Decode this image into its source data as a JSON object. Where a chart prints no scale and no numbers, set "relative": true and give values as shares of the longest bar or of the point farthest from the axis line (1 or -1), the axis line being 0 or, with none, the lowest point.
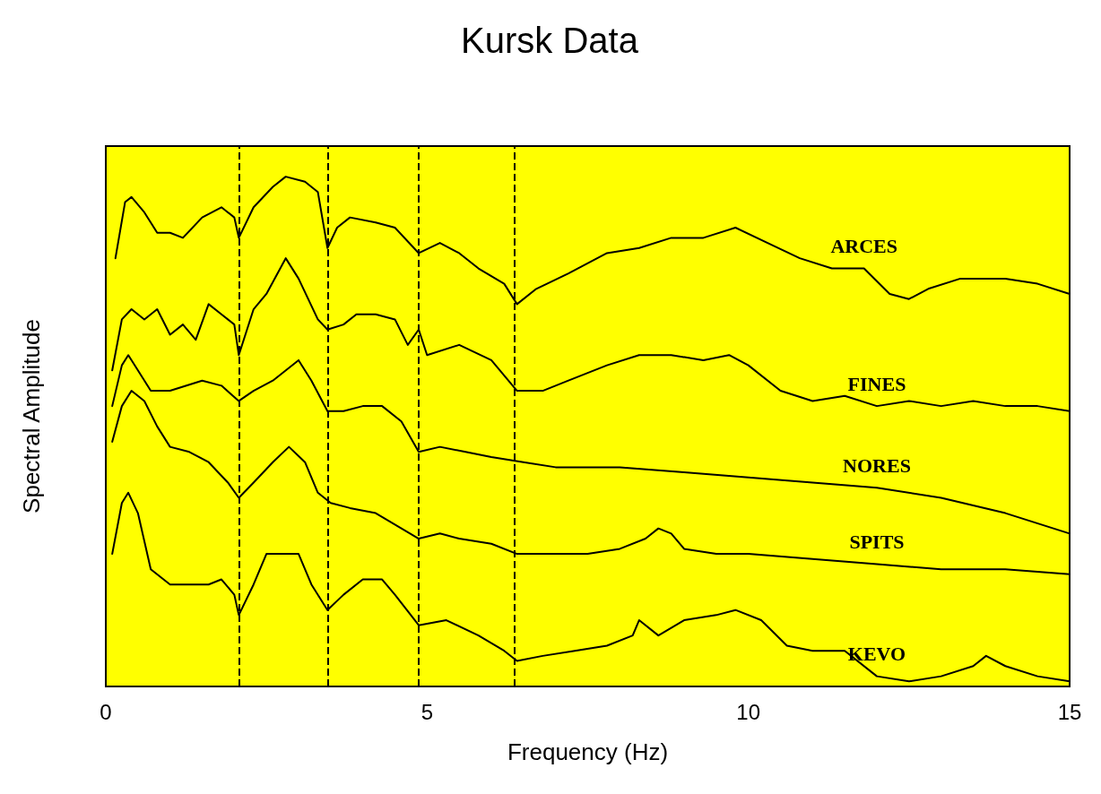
{
  "chart_data": {
    "type": "line",
    "title": "Kursk Data",
    "xlabel": "Frequency (Hz)",
    "ylabel": "Spectral Amplitude",
    "relative": true,
    "xlim": [
      0,
      15
    ],
    "xticks": [
      0,
      5,
      10,
      15
    ],
    "grid": false,
    "legend": false,
    "marker": "none",
    "line_style": "solid",
    "ref_lines": [
      {
        "axis": "x",
        "value": 2.07,
        "color": "#000000",
        "line_style": "dashed"
      },
      {
        "axis": "x",
        "value": 3.45,
        "color": "#000000",
        "line_style": "dashed"
      },
      {
        "axis": "x",
        "value": 4.87,
        "color": "#000000",
        "line_style": "dashed"
      },
      {
        "axis": "x",
        "value": 6.36,
        "color": "#000000",
        "line_style": "dashed"
      }
    ],
    "series": [
      {
        "name": "ARCES",
        "color": "#000000",
        "x": [
          0.15,
          0.3,
          0.4,
          0.6,
          0.8,
          1.0,
          1.2,
          1.5,
          1.8,
          2.0,
          2.07,
          2.3,
          2.6,
          2.8,
          3.1,
          3.3,
          3.45,
          3.6,
          3.8,
          4.2,
          4.5,
          4.87,
          5.2,
          5.5,
          5.8,
          6.2,
          6.4,
          6.7,
          7.2,
          7.8,
          8.3,
          8.8,
          9.3,
          9.8,
          10.3,
          10.8,
          11.3,
          11.8,
          12.2,
          12.5,
          12.8,
          13.3,
          14,
          14.5,
          15
        ],
        "values": [
          0.84,
          0.95,
          0.96,
          0.93,
          0.89,
          0.89,
          0.88,
          0.92,
          0.94,
          0.92,
          0.88,
          0.94,
          0.98,
          1.0,
          0.99,
          0.97,
          0.86,
          0.9,
          0.92,
          0.91,
          0.9,
          0.85,
          0.87,
          0.85,
          0.82,
          0.79,
          0.75,
          0.78,
          0.81,
          0.85,
          0.86,
          0.88,
          0.88,
          0.9,
          0.87,
          0.84,
          0.82,
          0.82,
          0.77,
          0.76,
          0.78,
          0.8,
          0.8,
          0.79,
          0.77
        ]
      },
      {
        "name": "FINES",
        "color": "#000000",
        "x": [
          0.1,
          0.25,
          0.4,
          0.6,
          0.8,
          1.0,
          1.2,
          1.4,
          1.6,
          1.8,
          2.0,
          2.07,
          2.3,
          2.5,
          2.8,
          3.0,
          3.3,
          3.45,
          3.7,
          3.9,
          4.2,
          4.5,
          4.7,
          4.87,
          5.0,
          5.5,
          6.0,
          6.4,
          6.8,
          7.2,
          7.8,
          8.3,
          8.8,
          9.3,
          9.7,
          10.0,
          10.5,
          11,
          11.5,
          12,
          12.5,
          13,
          13.5,
          14,
          14.5,
          15
        ],
        "values": [
          0.62,
          0.72,
          0.74,
          0.72,
          0.74,
          0.69,
          0.71,
          0.68,
          0.75,
          0.73,
          0.71,
          0.65,
          0.74,
          0.77,
          0.84,
          0.8,
          0.72,
          0.7,
          0.71,
          0.73,
          0.73,
          0.72,
          0.67,
          0.7,
          0.65,
          0.67,
          0.64,
          0.58,
          0.58,
          0.6,
          0.63,
          0.65,
          0.65,
          0.64,
          0.65,
          0.63,
          0.58,
          0.56,
          0.57,
          0.55,
          0.56,
          0.55,
          0.56,
          0.55,
          0.55,
          0.54
        ]
      },
      {
        "name": "NORES",
        "color": "#000000",
        "x": [
          0.1,
          0.25,
          0.35,
          0.5,
          0.7,
          1.0,
          1.5,
          1.8,
          2.07,
          2.3,
          2.6,
          3.0,
          3.2,
          3.45,
          3.7,
          4.0,
          4.3,
          4.6,
          4.87,
          5.2,
          5.6,
          6.0,
          6.5,
          7.0,
          8.0,
          9.0,
          10,
          11,
          12,
          13,
          14,
          15
        ],
        "values": [
          0.55,
          0.63,
          0.65,
          0.62,
          0.58,
          0.58,
          0.6,
          0.59,
          0.56,
          0.58,
          0.6,
          0.64,
          0.6,
          0.54,
          0.54,
          0.55,
          0.55,
          0.52,
          0.46,
          0.47,
          0.46,
          0.45,
          0.44,
          0.43,
          0.43,
          0.42,
          0.41,
          0.4,
          0.39,
          0.37,
          0.34,
          0.3
        ]
      },
      {
        "name": "SPITS",
        "color": "#000000",
        "x": [
          0.1,
          0.25,
          0.4,
          0.6,
          0.8,
          1.0,
          1.3,
          1.6,
          1.9,
          2.07,
          2.3,
          2.6,
          2.85,
          3.1,
          3.3,
          3.5,
          3.8,
          4.2,
          4.6,
          4.87,
          5.2,
          5.5,
          6.0,
          6.4,
          7.0,
          7.5,
          8.0,
          8.4,
          8.6,
          8.8,
          9.0,
          9.5,
          10,
          11,
          12,
          13,
          14,
          15
        ],
        "values": [
          0.48,
          0.55,
          0.58,
          0.56,
          0.51,
          0.47,
          0.46,
          0.44,
          0.4,
          0.37,
          0.4,
          0.44,
          0.47,
          0.44,
          0.38,
          0.36,
          0.35,
          0.34,
          0.31,
          0.29,
          0.3,
          0.29,
          0.28,
          0.26,
          0.26,
          0.26,
          0.27,
          0.29,
          0.31,
          0.3,
          0.27,
          0.26,
          0.26,
          0.25,
          0.24,
          0.23,
          0.23,
          0.22
        ]
      },
      {
        "name": "KEVO",
        "color": "#000000",
        "x": [
          0.1,
          0.25,
          0.35,
          0.5,
          0.7,
          1.0,
          1.3,
          1.6,
          1.8,
          2.0,
          2.07,
          2.3,
          2.5,
          2.8,
          3.0,
          3.2,
          3.45,
          3.7,
          4.0,
          4.3,
          4.5,
          4.87,
          5.3,
          5.8,
          6.2,
          6.4,
          6.8,
          7.3,
          7.8,
          8.2,
          8.3,
          8.6,
          9.0,
          9.5,
          9.8,
          10.2,
          10.6,
          11,
          11.5,
          12,
          12.5,
          13,
          13.5,
          13.7,
          14,
          14.5,
          15
        ],
        "values": [
          0.26,
          0.36,
          0.38,
          0.34,
          0.23,
          0.2,
          0.2,
          0.2,
          0.21,
          0.18,
          0.14,
          0.2,
          0.26,
          0.26,
          0.26,
          0.2,
          0.15,
          0.18,
          0.21,
          0.21,
          0.18,
          0.12,
          0.13,
          0.1,
          0.07,
          0.05,
          0.06,
          0.07,
          0.08,
          0.1,
          0.13,
          0.1,
          0.13,
          0.14,
          0.15,
          0.13,
          0.08,
          0.07,
          0.07,
          0.02,
          0.01,
          0.02,
          0.04,
          0.06,
          0.04,
          0.02,
          0.01
        ]
      }
    ]
  }
}
